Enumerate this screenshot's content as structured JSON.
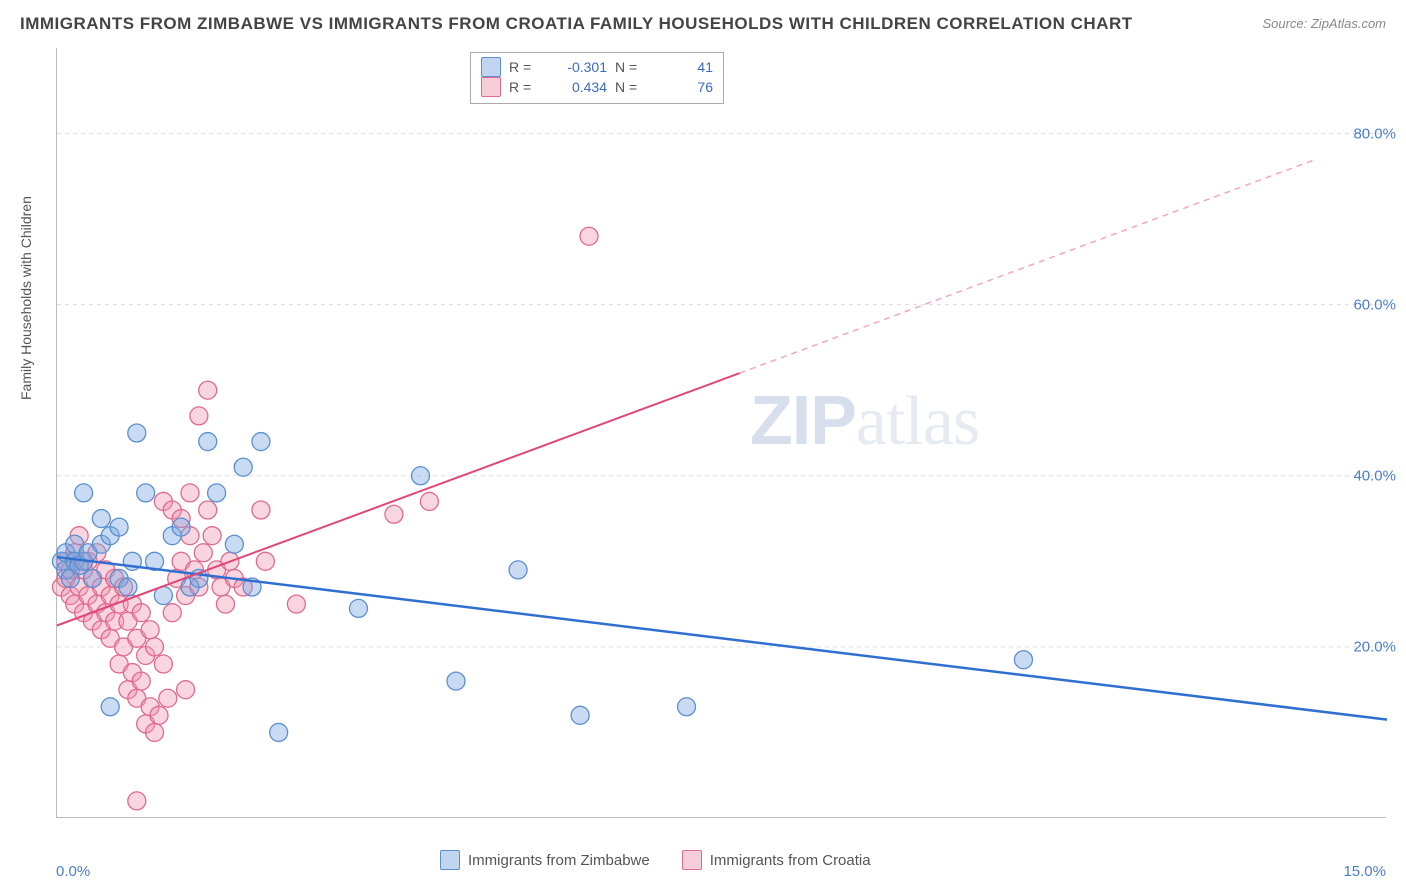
{
  "title": "IMMIGRANTS FROM ZIMBABWE VS IMMIGRANTS FROM CROATIA FAMILY HOUSEHOLDS WITH CHILDREN CORRELATION CHART",
  "source": "Source: ZipAtlas.com",
  "y_label": "Family Households with Children",
  "watermark_zip": "ZIP",
  "watermark_atlas": "atlas",
  "chart": {
    "type": "scatter",
    "xlim": [
      0,
      15
    ],
    "ylim": [
      0,
      90
    ],
    "y_ticks": [
      20,
      40,
      60,
      80
    ],
    "y_tick_labels": [
      "20.0%",
      "40.0%",
      "60.0%",
      "80.0%"
    ],
    "x_tick_left": "0.0%",
    "x_tick_right": "15.0%",
    "marker_radius": 9,
    "background_color": "#ffffff",
    "grid_color": "#dddddd",
    "axis_color": "#bbbbbb",
    "series": [
      {
        "name": "Immigrants from Zimbabwe",
        "color_fill": "rgba(120,165,225,0.4)",
        "color_stroke": "#5b8fd0",
        "R": "-0.301",
        "N": "41",
        "trend_color": "#2f6fd0",
        "trend": {
          "x1": 0,
          "y1": 30.5,
          "x2": 15,
          "y2": 11.5
        },
        "points": [
          [
            0.05,
            30
          ],
          [
            0.1,
            31
          ],
          [
            0.1,
            29
          ],
          [
            0.15,
            28
          ],
          [
            0.2,
            32
          ],
          [
            0.2,
            30
          ],
          [
            0.25,
            29.5
          ],
          [
            0.3,
            30
          ],
          [
            0.35,
            31
          ],
          [
            0.4,
            28
          ],
          [
            0.3,
            38
          ],
          [
            0.5,
            35
          ],
          [
            0.5,
            32
          ],
          [
            0.6,
            33
          ],
          [
            0.7,
            34
          ],
          [
            0.7,
            28
          ],
          [
            0.8,
            27
          ],
          [
            0.85,
            30
          ],
          [
            0.9,
            45
          ],
          [
            0.6,
            13
          ],
          [
            1.0,
            38
          ],
          [
            1.1,
            30
          ],
          [
            1.2,
            26
          ],
          [
            1.3,
            33
          ],
          [
            1.4,
            34
          ],
          [
            1.5,
            27
          ],
          [
            1.6,
            28
          ],
          [
            1.7,
            44
          ],
          [
            1.8,
            38
          ],
          [
            2.0,
            32
          ],
          [
            2.1,
            41
          ],
          [
            2.2,
            27
          ],
          [
            2.3,
            44
          ],
          [
            2.5,
            10
          ],
          [
            3.4,
            24.5
          ],
          [
            4.1,
            40
          ],
          [
            4.5,
            16
          ],
          [
            5.2,
            29
          ],
          [
            5.9,
            12
          ],
          [
            7.1,
            13
          ],
          [
            10.9,
            18.5
          ]
        ]
      },
      {
        "name": "Immigrants from Croatia",
        "color_fill": "rgba(240,150,175,0.4)",
        "color_stroke": "#e06a8f",
        "R": "0.434",
        "N": "76",
        "trend_color": "#e0487a",
        "trend_solid": {
          "x1": 0,
          "y1": 22.5,
          "x2": 7.7,
          "y2": 52
        },
        "trend_dash": {
          "x1": 7.7,
          "y1": 52,
          "x2": 14.2,
          "y2": 77
        },
        "points": [
          [
            0.05,
            27
          ],
          [
            0.1,
            28
          ],
          [
            0.1,
            30
          ],
          [
            0.15,
            26
          ],
          [
            0.15,
            29
          ],
          [
            0.2,
            25
          ],
          [
            0.2,
            31
          ],
          [
            0.25,
            27
          ],
          [
            0.25,
            33
          ],
          [
            0.3,
            24
          ],
          [
            0.3,
            29
          ],
          [
            0.35,
            26
          ],
          [
            0.35,
            30
          ],
          [
            0.4,
            23
          ],
          [
            0.4,
            28
          ],
          [
            0.45,
            25
          ],
          [
            0.45,
            31
          ],
          [
            0.5,
            22
          ],
          [
            0.5,
            27
          ],
          [
            0.55,
            24
          ],
          [
            0.55,
            29
          ],
          [
            0.6,
            21
          ],
          [
            0.6,
            26
          ],
          [
            0.65,
            23
          ],
          [
            0.65,
            28
          ],
          [
            0.7,
            18
          ],
          [
            0.7,
            25
          ],
          [
            0.75,
            20
          ],
          [
            0.75,
            27
          ],
          [
            0.8,
            15
          ],
          [
            0.8,
            23
          ],
          [
            0.85,
            17
          ],
          [
            0.85,
            25
          ],
          [
            0.9,
            14
          ],
          [
            0.9,
            21
          ],
          [
            0.95,
            16
          ],
          [
            0.95,
            24
          ],
          [
            1.0,
            11
          ],
          [
            1.0,
            19
          ],
          [
            1.05,
            13
          ],
          [
            1.05,
            22
          ],
          [
            1.1,
            10
          ],
          [
            1.1,
            20
          ],
          [
            1.15,
            12
          ],
          [
            1.2,
            18
          ],
          [
            1.2,
            37
          ],
          [
            1.25,
            14
          ],
          [
            1.3,
            24
          ],
          [
            1.3,
            36
          ],
          [
            1.35,
            28
          ],
          [
            1.4,
            35
          ],
          [
            1.4,
            30
          ],
          [
            1.45,
            26
          ],
          [
            1.5,
            38
          ],
          [
            1.5,
            33
          ],
          [
            1.55,
            29
          ],
          [
            1.6,
            27
          ],
          [
            1.6,
            47
          ],
          [
            1.65,
            31
          ],
          [
            1.7,
            36
          ],
          [
            1.7,
            50
          ],
          [
            1.75,
            33
          ],
          [
            1.8,
            29
          ],
          [
            1.85,
            27
          ],
          [
            1.9,
            25
          ],
          [
            1.95,
            30
          ],
          [
            2.0,
            28
          ],
          [
            2.1,
            27
          ],
          [
            2.3,
            36
          ],
          [
            2.35,
            30
          ],
          [
            2.7,
            25
          ],
          [
            3.8,
            35.5
          ],
          [
            4.2,
            37
          ],
          [
            6.0,
            68
          ],
          [
            0.9,
            2
          ],
          [
            1.45,
            15
          ]
        ]
      }
    ]
  },
  "legend_top_labels": {
    "R": "R =",
    "N": "N ="
  },
  "legend_bottom": [
    {
      "swatch": "blue",
      "label": "Immigrants from Zimbabwe"
    },
    {
      "swatch": "pink",
      "label": "Immigrants from Croatia"
    }
  ]
}
